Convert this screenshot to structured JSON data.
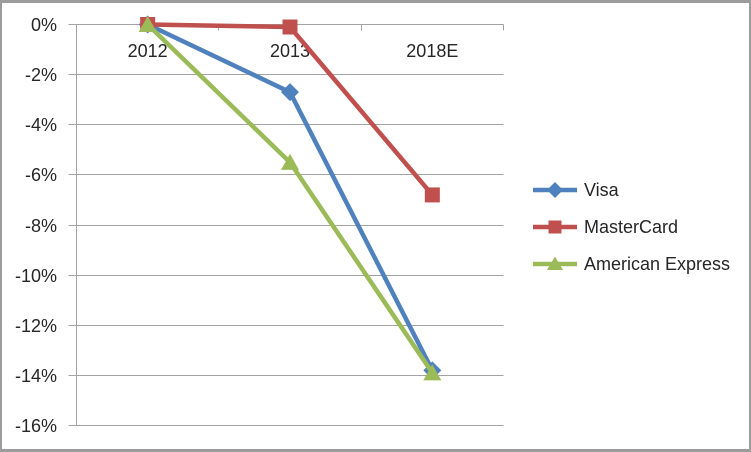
{
  "chart_data": {
    "type": "line",
    "title": "",
    "categories": [
      "2012",
      "2013",
      "2018E"
    ],
    "series": [
      {
        "name": "Visa",
        "color": "#4F81BD",
        "marker": "diamond",
        "values": [
          0,
          -2.7,
          -13.8
        ]
      },
      {
        "name": "MasterCard",
        "color": "#C0504D",
        "marker": "square",
        "values": [
          0,
          -0.1,
          -6.8
        ]
      },
      {
        "name": "American Express",
        "color": "#9BBB59",
        "marker": "triangle",
        "values": [
          0,
          -5.5,
          -13.9
        ]
      }
    ],
    "xlabel": "",
    "ylabel": "",
    "y_axis": {
      "min": -16,
      "max": 0,
      "step": 2,
      "unit": "%",
      "tick_labels": [
        "0%",
        "-2%",
        "-4%",
        "-6%",
        "-8%",
        "-10%",
        "-12%",
        "-14%",
        "-16%"
      ]
    },
    "ylim": [
      -16,
      0
    ],
    "grid": true,
    "legend_position": "right",
    "style": {
      "background": "#FFFFFF",
      "border_color": "#9C9C9C",
      "gridline_color": "#A3A3A3",
      "axis_color": "#A3A3A3",
      "text_color": "#262626"
    }
  }
}
